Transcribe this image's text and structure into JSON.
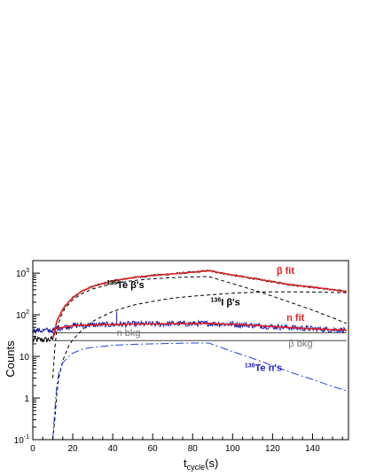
{
  "chart_data": {
    "type": "line",
    "xlabel": "t",
    "xlabel_sub": "cycle",
    "xlabel_unit": "(s)",
    "ylabel": "Counts",
    "xlim": [
      0,
      158
    ],
    "ylim": [
      0.1,
      2000
    ],
    "yscale": "log",
    "x_ticks": [
      0,
      20,
      40,
      60,
      80,
      100,
      120,
      140
    ],
    "y_ticks": [
      {
        "value": 0.1,
        "base": "10",
        "exp": "-1"
      },
      {
        "value": 1,
        "base": "1",
        "exp": ""
      },
      {
        "value": 10,
        "base": "10",
        "exp": ""
      },
      {
        "value": 100,
        "base": "10",
        "exp": "2"
      },
      {
        "value": 1000,
        "base": "10",
        "exp": "3"
      }
    ],
    "grid": false,
    "annotations": [
      {
        "id": "beta-fit",
        "sup": "",
        "text": "β fit",
        "x": 122,
        "y": 950,
        "color": "#dd2222",
        "bold": true
      },
      {
        "id": "te-betas",
        "sup": "136",
        "text": "Te β's",
        "x": 37,
        "y": 440,
        "color": "#000000",
        "bold": true
      },
      {
        "id": "i-betas",
        "sup": "136",
        "text": "I β's",
        "x": 89,
        "y": 170,
        "color": "#000000",
        "bold": true
      },
      {
        "id": "n-fit",
        "sup": "",
        "text": "n fit",
        "x": 127,
        "y": 72,
        "color": "#dd2222",
        "bold": true
      },
      {
        "id": "n-bkg",
        "sup": "",
        "text": "n bkg",
        "x": 42,
        "y": 31,
        "color": "#777777",
        "bold": false
      },
      {
        "id": "beta-bkg",
        "sup": "",
        "text": "β bkg",
        "x": 128,
        "y": 17,
        "color": "#777777",
        "bold": false
      },
      {
        "id": "te-ns",
        "sup": "136",
        "text": "Te n's",
        "x": 106,
        "y": 4.5,
        "color": "#2222cc",
        "bold": true
      }
    ],
    "series": [
      {
        "id": "beta-data",
        "color": "#000000",
        "style": "noisy-data",
        "x": [
          0,
          5,
          8,
          10,
          11,
          12,
          14,
          16,
          20,
          25,
          30,
          40,
          50,
          60,
          70,
          80,
          88,
          100,
          110,
          120,
          130,
          140,
          150,
          157
        ],
        "y": [
          25,
          25,
          25,
          26,
          40,
          70,
          110,
          160,
          260,
          380,
          480,
          650,
          780,
          880,
          960,
          1050,
          1150,
          900,
          750,
          620,
          520,
          460,
          400,
          360
        ]
      },
      {
        "id": "beta-fit",
        "color": "#dd2222",
        "style": "solid",
        "x": [
          10,
          11,
          12,
          14,
          16,
          20,
          25,
          30,
          40,
          50,
          60,
          70,
          80,
          88,
          100,
          110,
          120,
          130,
          140,
          150,
          157
        ],
        "y": [
          28,
          40,
          70,
          110,
          160,
          260,
          380,
          480,
          650,
          780,
          880,
          960,
          1050,
          1150,
          900,
          750,
          620,
          520,
          460,
          400,
          360
        ]
      },
      {
        "id": "te136-beta",
        "color": "#000000",
        "style": "dashed",
        "x": [
          10,
          11,
          12,
          14,
          16,
          20,
          25,
          30,
          40,
          50,
          60,
          70,
          80,
          88,
          100,
          110,
          120,
          130,
          140,
          150,
          157
        ],
        "y": [
          3,
          15,
          45,
          90,
          140,
          230,
          330,
          420,
          560,
          660,
          730,
          780,
          810,
          830,
          560,
          400,
          280,
          190,
          130,
          85,
          62
        ]
      },
      {
        "id": "i136-beta",
        "color": "#000000",
        "style": "dashed",
        "x": [
          10,
          11,
          12,
          13,
          15,
          18,
          20,
          25,
          30,
          40,
          50,
          60,
          70,
          80,
          88,
          100,
          110,
          120,
          130,
          140,
          150,
          157
        ],
        "y": [
          0.1,
          0.3,
          1.2,
          3,
          8,
          18,
          25,
          45,
          70,
          120,
          170,
          210,
          250,
          280,
          300,
          330,
          345,
          355,
          355,
          350,
          345,
          340
        ]
      },
      {
        "id": "n-data",
        "color": "#1a1aaa",
        "style": "noisy-data",
        "x": [
          0,
          5,
          8,
          10,
          12,
          15,
          20,
          30,
          40,
          50,
          60,
          70,
          80,
          88,
          100,
          110,
          120,
          130,
          140,
          150,
          157
        ],
        "y": [
          42,
          42,
          42,
          42,
          47,
          50,
          55,
          57,
          58,
          60,
          60,
          61,
          61,
          62,
          59,
          56,
          52,
          49,
          46,
          44,
          43
        ]
      },
      {
        "id": "n-fit",
        "color": "#dd2222",
        "style": "solid",
        "x": [
          10,
          12,
          15,
          20,
          30,
          40,
          50,
          60,
          70,
          80,
          88,
          100,
          110,
          120,
          130,
          140,
          150,
          157
        ],
        "y": [
          42,
          47,
          50,
          55,
          57,
          58,
          60,
          60,
          61,
          61,
          62,
          59,
          56,
          52,
          49,
          46,
          44,
          43
        ]
      },
      {
        "id": "n-bkg",
        "color": "#444444",
        "style": "solid-thin",
        "x": [
          10,
          157
        ],
        "y": [
          37,
          37
        ]
      },
      {
        "id": "beta-bkg",
        "color": "#444444",
        "style": "solid-thin",
        "x": [
          10,
          157
        ],
        "y": [
          24,
          24
        ]
      },
      {
        "id": "te136-n",
        "color": "#2244dd",
        "style": "dashdot",
        "x": [
          10,
          11,
          12,
          13,
          15,
          18,
          20,
          25,
          30,
          40,
          50,
          60,
          70,
          80,
          88,
          100,
          110,
          120,
          130,
          140,
          150,
          157
        ],
        "y": [
          0.1,
          0.5,
          2,
          4,
          7,
          10,
          12,
          15,
          16.5,
          18.5,
          19.5,
          20,
          20.5,
          21,
          21,
          13,
          9,
          6,
          4,
          2.8,
          1.9,
          1.5
        ]
      }
    ]
  }
}
